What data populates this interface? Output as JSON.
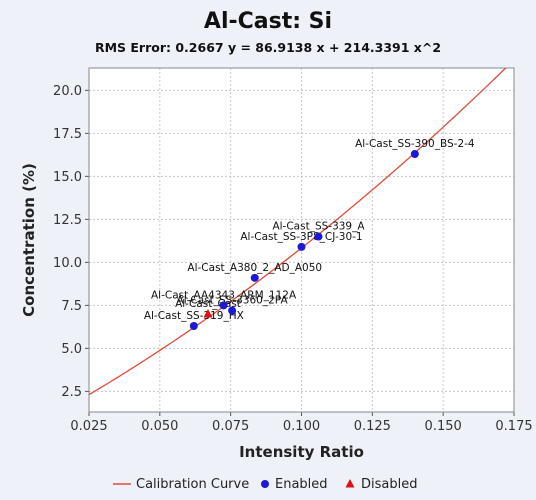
{
  "chart_data": {
    "type": "scatter",
    "title": "Al-Cast: Si",
    "subtitle": "RMS Error: 0.2667    y = 86.9138 x + 214.3391 x^2",
    "xlabel": "Intensity Ratio",
    "ylabel": "Concentration (%)",
    "xlim": [
      0.025,
      0.175
    ],
    "ylim": [
      1.3,
      21.3
    ],
    "x_ticks": [
      "0.025",
      "0.050",
      "0.075",
      "0.100",
      "0.125",
      "0.150",
      "0.175"
    ],
    "y_ticks": [
      "2.5",
      "5.0",
      "7.5",
      "10.0",
      "12.5",
      "15.0",
      "17.5",
      "20.0"
    ],
    "grid": true,
    "legend_position": "bottom",
    "legend": [
      {
        "label": "Calibration Curve",
        "marker": "line"
      },
      {
        "label": "Enabled",
        "marker": "circle"
      },
      {
        "label": "Disabled",
        "marker": "triangle"
      }
    ],
    "calibration_curve": {
      "a": 86.9138,
      "b": 214.3391
    },
    "enabled_points": [
      {
        "label": "Al-Cast_SS-390_BS-2-4",
        "x": 0.14,
        "y": 16.3
      },
      {
        "label": "Al-Cast_SS-339_A",
        "x": 0.106,
        "y": 11.5
      },
      {
        "label": "Al-Cast_SS-3P8_CJ-30-1",
        "x": 0.1,
        "y": 10.9
      },
      {
        "label": "Al-Cast_A380_2_AD_A050",
        "x": 0.0835,
        "y": 9.1
      },
      {
        "label": "Al-Cast_AA4343_ARM_112A",
        "x": 0.0725,
        "y": 7.5
      },
      {
        "label": "Al-Cast_SS-3360_2PA",
        "x": 0.0755,
        "y": 7.2
      },
      {
        "label": "Al-Cast_SS-319_HX",
        "x": 0.062,
        "y": 6.3
      }
    ],
    "disabled_points": [
      {
        "label": "Al-Cast_Cast",
        "x": 0.067,
        "y": 7.0
      }
    ]
  },
  "colors": {
    "background": "#eef2f8",
    "plot_background": "#ffffff",
    "curve": "#e34a3a",
    "enabled": "#1a1ad6",
    "disabled": "#e01010",
    "grid": "#c8c8c8",
    "text": "#111111"
  }
}
